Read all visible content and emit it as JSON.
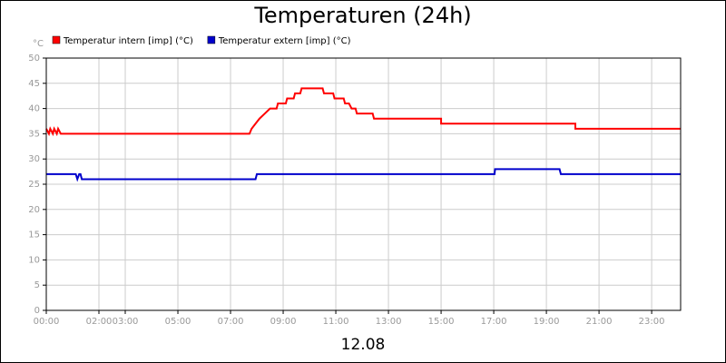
{
  "chart_data": {
    "type": "line",
    "title": "Temperaturen (24h)",
    "x_label": "12.08",
    "y_unit": "°C",
    "grid": true,
    "legend": "top-left",
    "xlim": [
      0,
      24.1
    ],
    "ylim": [
      0,
      50
    ],
    "yticks": [
      0,
      5,
      10,
      15,
      20,
      25,
      30,
      35,
      40,
      45,
      50
    ],
    "xticks": [
      {
        "value": 0,
        "label": "00:00"
      },
      {
        "value": 2,
        "label": "02:00"
      },
      {
        "value": 3,
        "label": "03:00"
      },
      {
        "value": 5,
        "label": "05:00"
      },
      {
        "value": 7,
        "label": "07:00"
      },
      {
        "value": 9,
        "label": "09:00"
      },
      {
        "value": 11,
        "label": "11:00"
      },
      {
        "value": 13,
        "label": "13:00"
      },
      {
        "value": 15,
        "label": "15:00"
      },
      {
        "value": 17,
        "label": "17:00"
      },
      {
        "value": 19,
        "label": "19:00"
      },
      {
        "value": 21,
        "label": "21:00"
      },
      {
        "value": 23,
        "label": "23:00"
      }
    ],
    "series": [
      {
        "name": "Temperatur intern [imp] (°C)",
        "color": "#ff0000",
        "x": [
          0,
          0.1,
          0.15,
          0.25,
          0.3,
          0.4,
          0.45,
          0.55,
          7.72,
          7.8,
          7.95,
          8.1,
          8.3,
          8.5,
          8.75,
          8.8,
          9.1,
          9.15,
          9.4,
          9.45,
          9.65,
          9.7,
          10.5,
          10.55,
          10.9,
          10.95,
          11.3,
          11.35,
          11.5,
          11.6,
          11.75,
          11.8,
          12.4,
          12.45,
          15.0,
          15.0,
          20.1,
          20.1,
          24.1
        ],
        "values": [
          36,
          35,
          36,
          35,
          36,
          35,
          36,
          35,
          35,
          36,
          37,
          38,
          39,
          40,
          40,
          41,
          41,
          42,
          42,
          43,
          43,
          44,
          44,
          43,
          43,
          42,
          42,
          41,
          41,
          40,
          40,
          39,
          39,
          38,
          38,
          37,
          37,
          36,
          36
        ]
      },
      {
        "name": "Temperatur extern [imp] (°C)",
        "color": "#0000cc",
        "x": [
          0,
          1.12,
          1.18,
          1.25,
          1.3,
          1.35,
          7.95,
          8.0,
          17.03,
          17.05,
          19.5,
          19.55,
          24.1
        ],
        "values": [
          27,
          27,
          26,
          27,
          27,
          26,
          26,
          27,
          27,
          28,
          28,
          27,
          27
        ]
      }
    ]
  }
}
